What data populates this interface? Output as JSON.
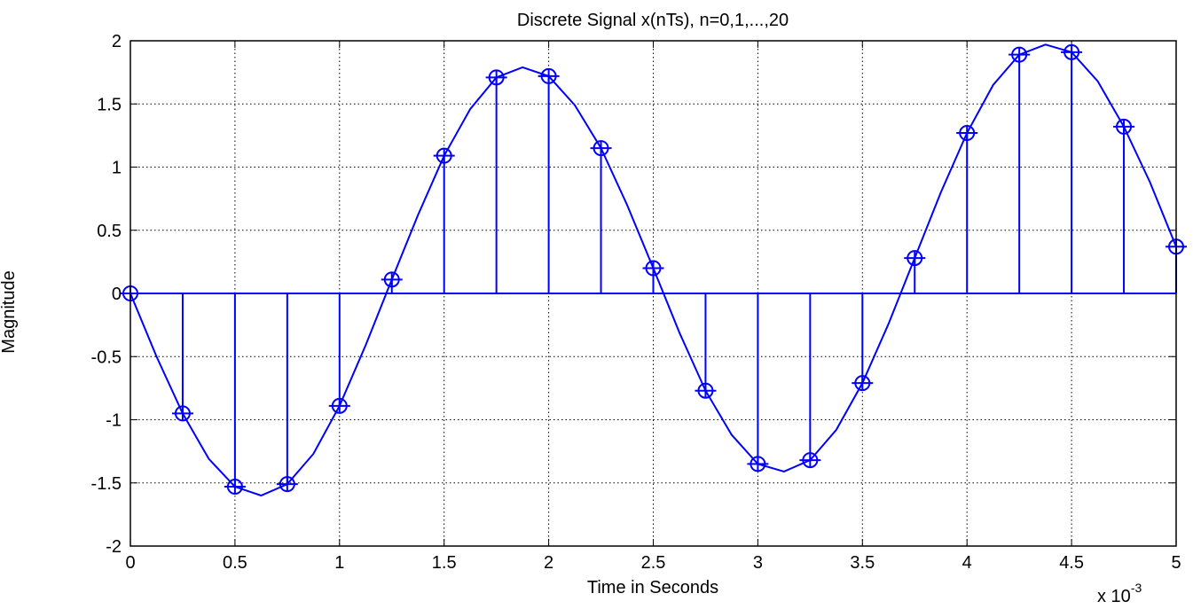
{
  "chart_data": {
    "type": "stem",
    "title": "Discrete Signal x(nTs), n=0,1,...,20",
    "xlabel": "Time in Seconds",
    "ylabel": "Magnitude",
    "x_multiplier_label": "x 10",
    "x_multiplier_exponent": "-3",
    "xlim": [
      0,
      5
    ],
    "ylim": [
      -2,
      2
    ],
    "grid": true,
    "line_color": "#0000ff",
    "x_ticks": [
      0,
      0.5,
      1,
      1.5,
      2,
      2.5,
      3,
      3.5,
      4,
      4.5,
      5
    ],
    "y_ticks": [
      -2,
      -1.5,
      -1,
      -0.5,
      0,
      0.5,
      1,
      1.5,
      2
    ],
    "samples": {
      "x": [
        0,
        0.25,
        0.5,
        0.75,
        1,
        1.25,
        1.5,
        1.75,
        2,
        2.25,
        2.5,
        2.75,
        3,
        3.25,
        3.5,
        3.75,
        4,
        4.25,
        4.5,
        4.75,
        5
      ],
      "y": [
        0,
        -0.95,
        -1.53,
        -1.51,
        -0.89,
        0.11,
        1.09,
        1.71,
        1.72,
        1.15,
        0.2,
        -0.77,
        -1.35,
        -1.32,
        -0.71,
        0.28,
        1.27,
        1.89,
        1.91,
        1.32,
        0.37
      ]
    },
    "continuous": {
      "x": [
        0,
        0.125,
        0.25,
        0.375,
        0.5,
        0.625,
        0.75,
        0.875,
        1,
        1.125,
        1.25,
        1.375,
        1.5,
        1.625,
        1.75,
        1.875,
        2,
        2.125,
        2.25,
        2.375,
        2.5,
        2.625,
        2.75,
        2.875,
        3,
        3.125,
        3.25,
        3.375,
        3.5,
        3.625,
        3.75,
        3.875,
        4,
        4.125,
        4.25,
        4.375,
        4.5,
        4.625,
        4.75,
        4.875,
        5
      ],
      "y": [
        0,
        -0.5,
        -0.95,
        -1.31,
        -1.53,
        -1.6,
        -1.51,
        -1.27,
        -0.89,
        -0.41,
        0.11,
        0.62,
        1.09,
        1.46,
        1.71,
        1.79,
        1.72,
        1.49,
        1.15,
        0.7,
        0.2,
        -0.31,
        -0.77,
        -1.12,
        -1.35,
        -1.41,
        -1.32,
        -1.08,
        -0.71,
        -0.24,
        0.28,
        0.8,
        1.27,
        1.65,
        1.89,
        1.97,
        1.91,
        1.68,
        1.32,
        0.88,
        0.37
      ]
    }
  }
}
